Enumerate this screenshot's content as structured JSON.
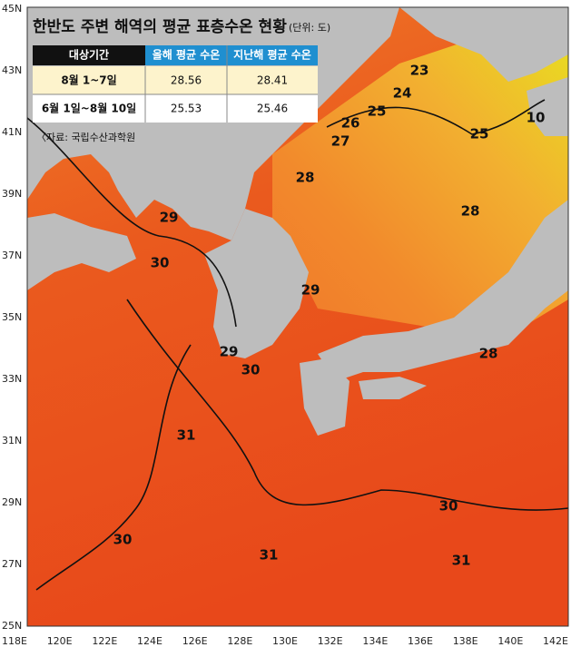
{
  "title": "한반도 주변 해역의 평균 표층수온 현황",
  "unit": "(단위: 도)",
  "table": {
    "header": [
      "대상기간",
      "올해 평균 수온",
      "지난해 평균 수온"
    ],
    "rows": [
      [
        "8월 1~7일",
        "28.56",
        "28.41"
      ],
      [
        "6월 1일~8월 10일",
        "25.53",
        "25.46"
      ]
    ]
  },
  "source": "〈자료: 국립수산과학원",
  "lat_labels": [
    "45N",
    "43N",
    "41N",
    "39N",
    "37N",
    "35N",
    "33N",
    "31N",
    "29N",
    "27N",
    "25N"
  ],
  "lon_labels": [
    "118E",
    "120E",
    "122E",
    "124E",
    "126E",
    "128E",
    "130E",
    "132E",
    "134E",
    "136E",
    "138E",
    "140E",
    "142E"
  ],
  "contour_labels": [
    "23",
    "24",
    "25",
    "26",
    "27",
    "25",
    "28",
    "28",
    "29",
    "30",
    "29",
    "29",
    "30",
    "28",
    "31",
    "30",
    "30",
    "31",
    "31",
    "10"
  ]
}
